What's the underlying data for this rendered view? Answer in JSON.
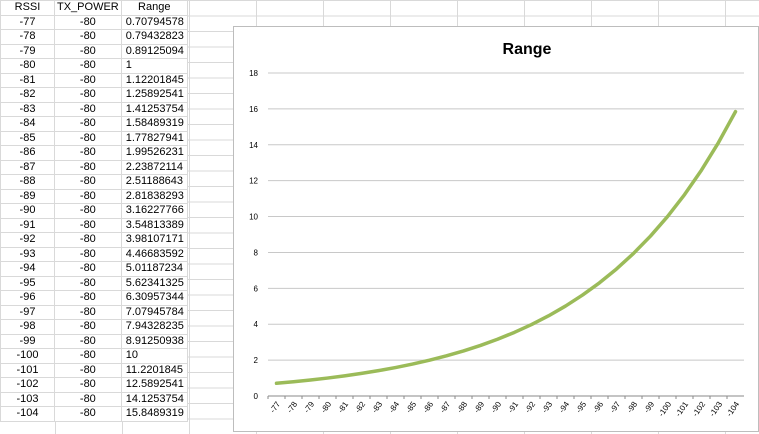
{
  "table": {
    "headers": [
      "RSSI",
      "TX_POWER",
      "Range"
    ],
    "rows": [
      [
        "-77",
        "-80",
        "0.70794578"
      ],
      [
        "-78",
        "-80",
        "0.79432823"
      ],
      [
        "-79",
        "-80",
        "0.89125094"
      ],
      [
        "-80",
        "-80",
        "1"
      ],
      [
        "-81",
        "-80",
        "1.12201845"
      ],
      [
        "-82",
        "-80",
        "1.25892541"
      ],
      [
        "-83",
        "-80",
        "1.41253754"
      ],
      [
        "-84",
        "-80",
        "1.58489319"
      ],
      [
        "-85",
        "-80",
        "1.77827941"
      ],
      [
        "-86",
        "-80",
        "1.99526231"
      ],
      [
        "-87",
        "-80",
        "2.23872114"
      ],
      [
        "-88",
        "-80",
        "2.51188643"
      ],
      [
        "-89",
        "-80",
        "2.81838293"
      ],
      [
        "-90",
        "-80",
        "3.16227766"
      ],
      [
        "-91",
        "-80",
        "3.54813389"
      ],
      [
        "-92",
        "-80",
        "3.98107171"
      ],
      [
        "-93",
        "-80",
        "4.46683592"
      ],
      [
        "-94",
        "-80",
        "5.01187234"
      ],
      [
        "-95",
        "-80",
        "5.62341325"
      ],
      [
        "-96",
        "-80",
        "6.30957344"
      ],
      [
        "-97",
        "-80",
        "7.07945784"
      ],
      [
        "-98",
        "-80",
        "7.94328235"
      ],
      [
        "-99",
        "-80",
        "8.91250938"
      ],
      [
        "-100",
        "-80",
        "10"
      ],
      [
        "-101",
        "-80",
        "11.2201845"
      ],
      [
        "-102",
        "-80",
        "12.5892541"
      ],
      [
        "-103",
        "-80",
        "14.1253754"
      ],
      [
        "-104",
        "-80",
        "15.8489319"
      ]
    ]
  },
  "chart_data": {
    "type": "line",
    "title": "Range",
    "xlabel": "",
    "ylabel": "",
    "categories": [
      "-77",
      "-78",
      "-79",
      "-80",
      "-81",
      "-82",
      "-83",
      "-84",
      "-85",
      "-86",
      "-87",
      "-88",
      "-89",
      "-90",
      "-91",
      "-92",
      "-93",
      "-94",
      "-95",
      "-96",
      "-97",
      "-98",
      "-99",
      "-100",
      "-101",
      "-102",
      "-103",
      "-104"
    ],
    "series": [
      {
        "values": [
          0.70794578,
          0.79432823,
          0.89125094,
          1,
          1.12201845,
          1.25892541,
          1.41253754,
          1.58489319,
          1.77827941,
          1.99526231,
          2.23872114,
          2.51188643,
          2.81838293,
          3.16227766,
          3.54813389,
          3.98107171,
          4.46683592,
          5.01187234,
          5.62341325,
          6.30957344,
          7.07945784,
          7.94328235,
          8.91250938,
          10,
          11.2201845,
          12.5892541,
          14.1253754,
          15.8489319
        ],
        "color": "#9bbb59"
      }
    ],
    "ylim": [
      0,
      18
    ],
    "yticks": [
      0,
      2,
      4,
      6,
      8,
      10,
      12,
      14,
      16,
      18
    ],
    "grid": true,
    "legend": "none"
  }
}
